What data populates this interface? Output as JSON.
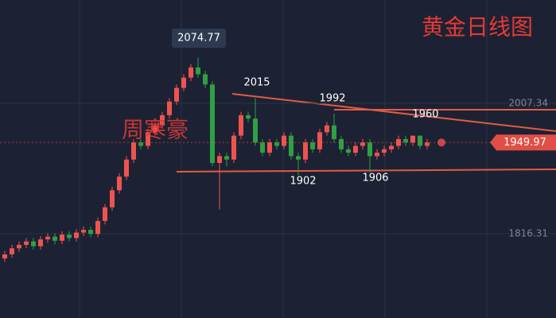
{
  "chart_data": {
    "type": "candlestick",
    "title": "黄金日线图",
    "watermark": "周寒豪",
    "open": [
      1780,
      1786,
      1795,
      1800,
      1805,
      1798,
      1808,
      1812,
      1806,
      1815,
      1810,
      1818,
      1822,
      1816,
      1835,
      1855,
      1880,
      1900,
      1925,
      1950,
      1945,
      1965,
      1975,
      1990,
      2010,
      2030,
      2045,
      2060,
      2050,
      2035,
      1920,
      1930,
      1925,
      1960,
      1990,
      1985,
      1950,
      1935,
      1950,
      1945,
      1960,
      1930,
      1925,
      1950,
      1940,
      1965,
      1975,
      1955,
      1940,
      1935,
      1945,
      1950,
      1930,
      1935,
      1940,
      1945,
      1955,
      1950,
      1960,
      1945
    ],
    "high": [
      1791,
      1800,
      1805,
      1810,
      1810,
      1813,
      1817,
      1817,
      1820,
      1820,
      1823,
      1827,
      1827,
      1840,
      1860,
      1885,
      1905,
      1930,
      1955,
      1955,
      1970,
      1980,
      1995,
      2015,
      2035,
      2050,
      2065,
      2074.77,
      2055,
      2040,
      1935,
      1935,
      1965,
      1995,
      1995,
      2015,
      1955,
      1955,
      1955,
      1965,
      1965,
      1935,
      1955,
      1955,
      1970,
      1980,
      1992,
      1960,
      1945,
      1950,
      1955,
      1955,
      1940,
      1945,
      1950,
      1960,
      1960,
      1960,
      1960,
      1955
    ],
    "low": [
      1775,
      1781,
      1790,
      1795,
      1793,
      1793,
      1803,
      1801,
      1801,
      1805,
      1805,
      1813,
      1811,
      1811,
      1830,
      1850,
      1875,
      1895,
      1920,
      1940,
      1940,
      1960,
      1970,
      1985,
      2005,
      2025,
      2040,
      2045,
      2030,
      1915,
      1852,
      1915,
      1920,
      1955,
      1980,
      1945,
      1930,
      1930,
      1940,
      1940,
      1925,
      1902,
      1920,
      1935,
      1935,
      1960,
      1950,
      1935,
      1930,
      1930,
      1940,
      1906,
      1925,
      1930,
      1935,
      1940,
      1945,
      1945,
      1940,
      1940
    ],
    "close": [
      1786,
      1795,
      1800,
      1805,
      1798,
      1808,
      1812,
      1806,
      1815,
      1810,
      1818,
      1822,
      1816,
      1835,
      1855,
      1880,
      1900,
      1925,
      1950,
      1945,
      1965,
      1975,
      1990,
      2010,
      2030,
      2045,
      2060,
      2050,
      2035,
      1920,
      1930,
      1925,
      1960,
      1990,
      1985,
      1950,
      1935,
      1950,
      1945,
      1960,
      1930,
      1925,
      1950,
      1940,
      1965,
      1975,
      1955,
      1940,
      1935,
      1945,
      1950,
      1930,
      1935,
      1940,
      1945,
      1955,
      1950,
      1960,
      1945,
      1949.97
    ],
    "up_color": "#ef5350",
    "down_color": "#2ea043",
    "ylim": [
      1692.8,
      2158.8
    ],
    "yticks": [
      2007.34,
      1816.31
    ],
    "last_price": 1949.97,
    "annotations": [
      2074.77,
      2015,
      1992,
      1960,
      1902,
      1906
    ]
  }
}
